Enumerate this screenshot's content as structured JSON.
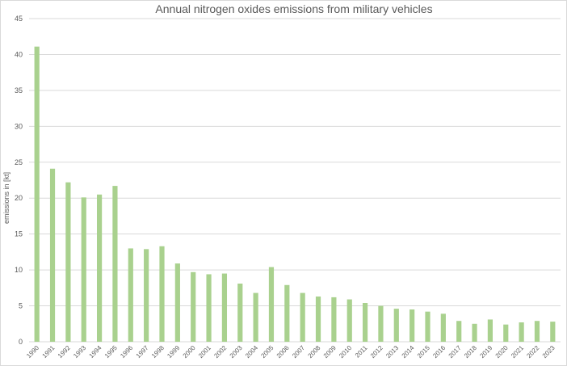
{
  "chart_data": {
    "type": "bar",
    "title": "Annual nitrogen oxides emissions from military vehicles",
    "xlabel": "",
    "ylabel": "emissions in [kt]",
    "ylim": [
      0,
      45
    ],
    "yticks": [
      0,
      5,
      10,
      15,
      20,
      25,
      30,
      35,
      40,
      45
    ],
    "grid": true,
    "legend": "none",
    "bar_color": "#a9d18e",
    "categories": [
      "1990",
      "1991",
      "1992",
      "1993",
      "1994",
      "1995",
      "1996",
      "1997",
      "1998",
      "1999",
      "2000",
      "2001",
      "2002",
      "2003",
      "2004",
      "2005",
      "2006",
      "2007",
      "2008",
      "2009",
      "2010",
      "2011",
      "2012",
      "2013",
      "2014",
      "2015",
      "2016",
      "2017",
      "2018",
      "2019",
      "2020",
      "2021",
      "2022",
      "2023"
    ],
    "values": [
      41.1,
      24.1,
      22.2,
      20.1,
      20.5,
      21.7,
      13.0,
      12.9,
      13.3,
      10.9,
      9.7,
      9.4,
      9.5,
      8.1,
      6.8,
      10.4,
      7.9,
      6.8,
      6.3,
      6.2,
      5.9,
      5.4,
      5.0,
      4.6,
      4.5,
      4.2,
      3.9,
      2.9,
      2.5,
      3.1,
      2.4,
      2.7,
      2.9,
      2.8
    ]
  }
}
